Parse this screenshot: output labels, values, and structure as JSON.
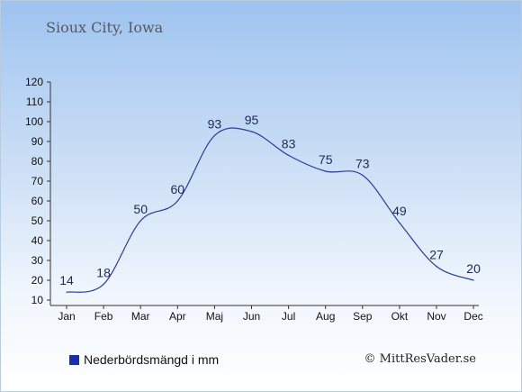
{
  "title": "Sioux City, Iowa",
  "legend_label": "Nederbördsmängd i mm",
  "credit": "© MittResVader.se",
  "colors": {
    "line": "#2a3aa5",
    "legend": "#1a2ea8",
    "text": "#1e2a55"
  },
  "chart_data": {
    "type": "line",
    "categories": [
      "Jan",
      "Feb",
      "Mar",
      "Apr",
      "Maj",
      "Jun",
      "Jul",
      "Aug",
      "Sep",
      "Okt",
      "Nov",
      "Dec"
    ],
    "series": [
      {
        "name": "Nederbördsmängd i mm",
        "values": [
          14,
          18,
          50,
          60,
          93,
          95,
          83,
          75,
          73,
          49,
          27,
          20
        ]
      }
    ],
    "ylim": [
      10,
      120
    ],
    "yticks": [
      10,
      20,
      30,
      40,
      50,
      60,
      70,
      80,
      90,
      100,
      110,
      120
    ],
    "grid": false,
    "legend": "bottom-left"
  }
}
